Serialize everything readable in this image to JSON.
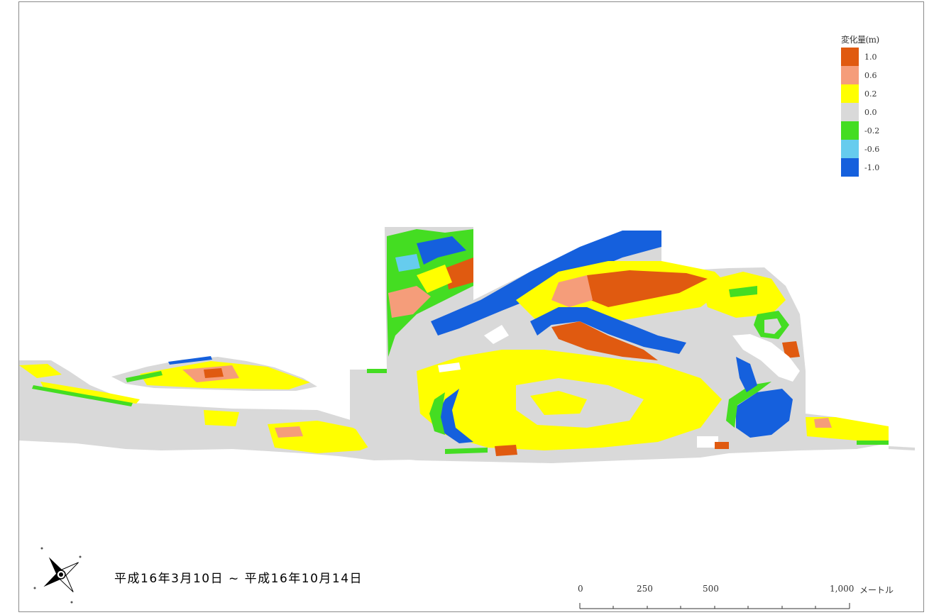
{
  "legend": {
    "title": "変化量(m)",
    "items": [
      {
        "label": "1.0",
        "color": "#e05a10"
      },
      {
        "label": "0.6",
        "color": "#f59d7a"
      },
      {
        "label": "0.2",
        "color": "#ffff00"
      },
      {
        "label": "0.0",
        "color": "#d9d9d9"
      },
      {
        "label": "-0.2",
        "color": "#44dd22"
      },
      {
        "label": "-0.6",
        "color": "#66ccee"
      },
      {
        "label": "-1.0",
        "color": "#1560dd"
      }
    ]
  },
  "period_label": "平成16年3月10日 ~ 平成16年10月14日",
  "scale_bar": {
    "labels": [
      "0",
      "250",
      "500",
      "1,000"
    ],
    "unit": "メートル"
  },
  "compass": {
    "icon": "north-arrow-icon"
  }
}
